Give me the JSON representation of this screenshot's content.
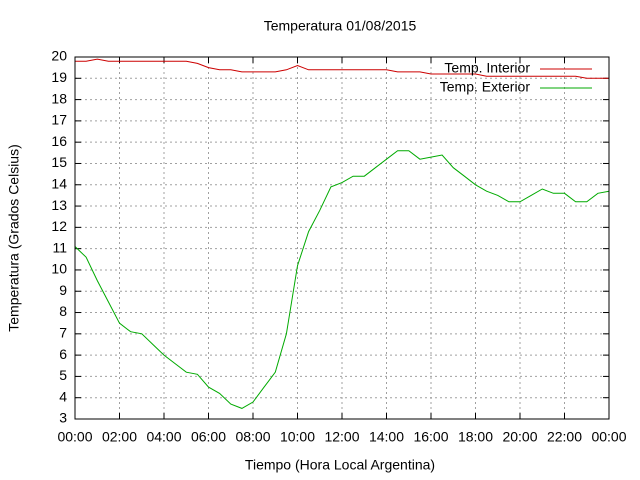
{
  "chart_data": {
    "type": "line",
    "title": "Temperatura 01/08/2015",
    "x_label": "Tiempo (Hora Local Argentina)",
    "y_label": "Temperatura (Grados Celsius)",
    "x": [
      0,
      0.5,
      1,
      1.5,
      2,
      2.5,
      3,
      3.5,
      4,
      4.5,
      5,
      5.5,
      6,
      6.5,
      7,
      7.5,
      8,
      8.5,
      9,
      9.5,
      10,
      10.5,
      11,
      11.5,
      12,
      12.5,
      13,
      13.5,
      14,
      14.5,
      15,
      15.5,
      16,
      16.5,
      17,
      17.5,
      18,
      18.5,
      19,
      19.5,
      20,
      20.5,
      21,
      21.5,
      22,
      22.5,
      23,
      23.5,
      24
    ],
    "series": [
      {
        "name": "Temp. Interior",
        "color": "#cc0000",
        "values": [
          19.8,
          19.8,
          19.9,
          19.8,
          19.8,
          19.8,
          19.8,
          19.8,
          19.8,
          19.8,
          19.8,
          19.7,
          19.5,
          19.4,
          19.4,
          19.3,
          19.3,
          19.3,
          19.3,
          19.4,
          19.6,
          19.4,
          19.4,
          19.4,
          19.4,
          19.4,
          19.4,
          19.4,
          19.4,
          19.3,
          19.3,
          19.3,
          19.2,
          19.2,
          19.2,
          19.2,
          19.2,
          19.1,
          19.1,
          19.1,
          19.1,
          19.1,
          19.1,
          19.1,
          19.1,
          19.1,
          19.0,
          19.0,
          19.0
        ]
      },
      {
        "name": "Temp. Exterior",
        "color": "#00aa00",
        "values": [
          11.1,
          10.6,
          9.5,
          8.5,
          7.5,
          7.1,
          7.0,
          6.5,
          6.0,
          5.6,
          5.2,
          5.1,
          4.5,
          4.2,
          3.7,
          3.5,
          3.8,
          4.5,
          5.2,
          7.0,
          10.2,
          11.8,
          12.8,
          13.9,
          14.1,
          14.4,
          14.4,
          14.8,
          15.2,
          15.6,
          15.6,
          15.2,
          15.3,
          15.4,
          14.8,
          14.4,
          14.0,
          13.7,
          13.5,
          13.2,
          13.2,
          13.5,
          13.8,
          13.6,
          13.6,
          13.2,
          13.2,
          13.6,
          13.7
        ]
      }
    ],
    "xlim": [
      0,
      24
    ],
    "xticks": [
      {
        "value": 0,
        "label": "00:00"
      },
      {
        "value": 2,
        "label": "02:00"
      },
      {
        "value": 4,
        "label": "04:00"
      },
      {
        "value": 6,
        "label": "06:00"
      },
      {
        "value": 8,
        "label": "08:00"
      },
      {
        "value": 10,
        "label": "10:00"
      },
      {
        "value": 12,
        "label": "12:00"
      },
      {
        "value": 14,
        "label": "14:00"
      },
      {
        "value": 16,
        "label": "16:00"
      },
      {
        "value": 18,
        "label": "18:00"
      },
      {
        "value": 20,
        "label": "20:00"
      },
      {
        "value": 22,
        "label": "22:00"
      },
      {
        "value": 24,
        "label": "00:00"
      }
    ],
    "ylim": [
      3,
      20
    ],
    "yticks": [
      3,
      4,
      5,
      6,
      7,
      8,
      9,
      10,
      11,
      12,
      13,
      14,
      15,
      16,
      17,
      18,
      19,
      20
    ],
    "grid": true,
    "legend": "top-right"
  }
}
